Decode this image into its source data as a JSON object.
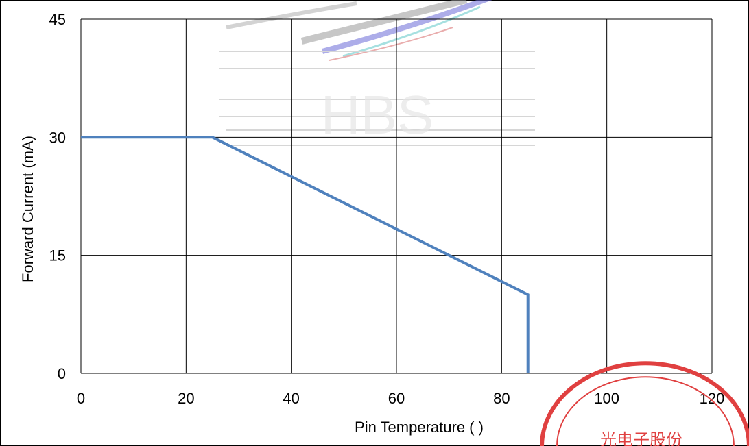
{
  "chart_data": {
    "type": "line",
    "title": "",
    "xlabel": "Pin Temperature (   )",
    "ylabel": "Forward Current (mA)",
    "xlim": [
      0,
      120
    ],
    "ylim": [
      0,
      45
    ],
    "x_ticks": [
      "0",
      "20",
      "40",
      "60",
      "80",
      "100",
      "120"
    ],
    "y_ticks": [
      "0",
      "15",
      "30",
      "45"
    ],
    "grid": true,
    "legend": "none",
    "series": [
      {
        "color": "#4F81BD",
        "points": [
          [
            0,
            30
          ],
          [
            25,
            30
          ],
          [
            85,
            10
          ],
          [
            85,
            0
          ]
        ]
      }
    ]
  },
  "watermark": {
    "text": "HBS",
    "description": "faded company logo"
  },
  "stamp": {
    "text": "光电子股份",
    "color": "#e04040"
  }
}
